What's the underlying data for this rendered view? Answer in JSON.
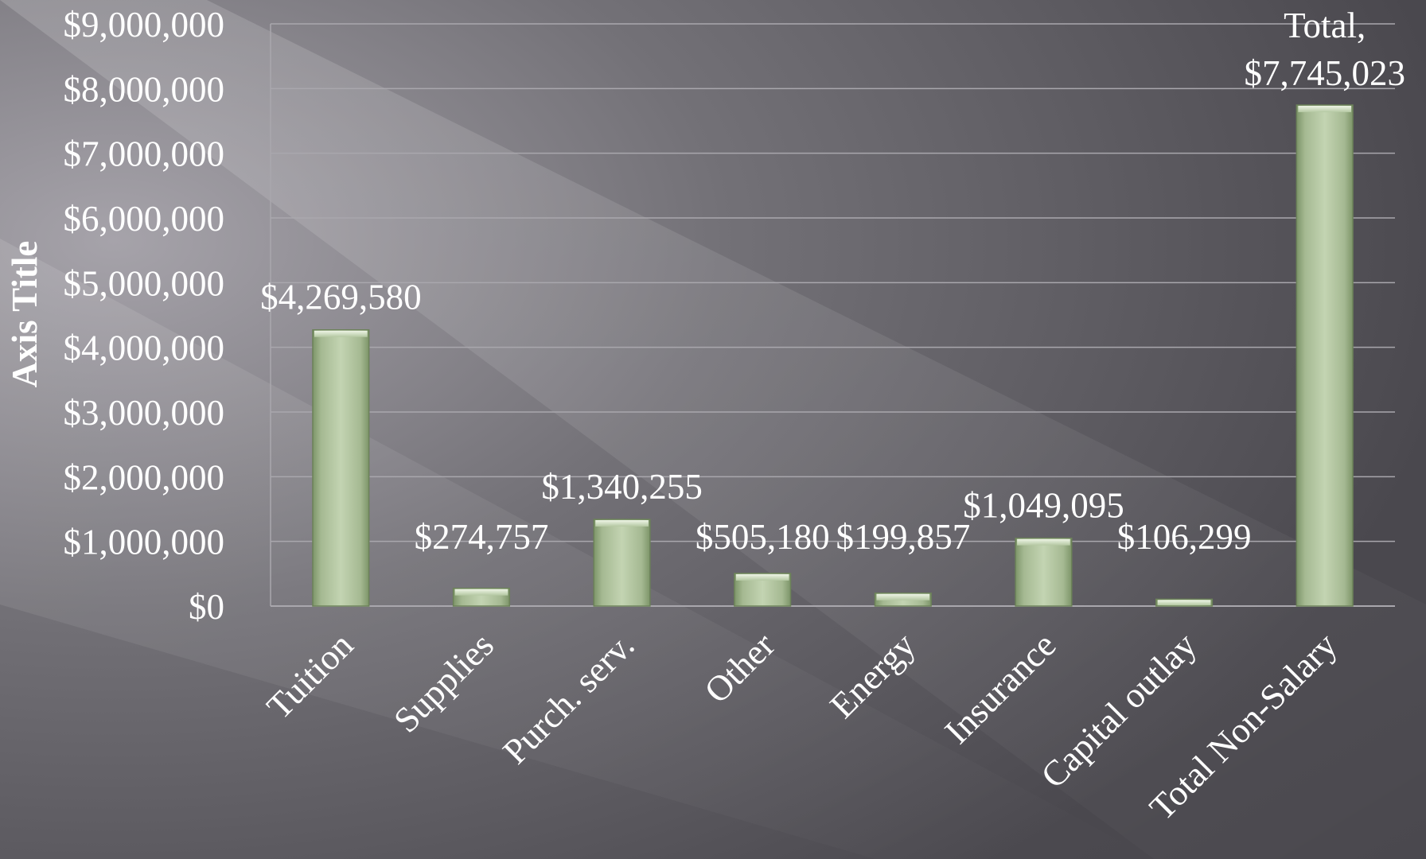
{
  "chart_data": {
    "type": "bar",
    "categories": [
      "Tuition",
      "Supplies",
      "Purch. serv.",
      "Other",
      "Energy",
      "Insurance",
      "Capital outlay",
      "Total Non-Salary"
    ],
    "values": [
      4269580,
      274757,
      1340255,
      505180,
      199857,
      1049095,
      106299,
      7745023
    ],
    "data_labels": [
      "$4,269,580",
      "$274,757",
      "$1,340,255",
      "$505,180",
      "$199,857",
      "$1,049,095",
      "$106,299",
      "Total, $7,745,023"
    ],
    "ylabel": "Axis Title",
    "xlabel": "",
    "title": "",
    "ylim": [
      0,
      9000000
    ],
    "yticks": [
      0,
      1000000,
      2000000,
      3000000,
      4000000,
      5000000,
      6000000,
      7000000,
      8000000,
      9000000
    ],
    "ytick_labels": [
      "$0",
      "$1,000,000",
      "$2,000,000",
      "$3,000,000",
      "$4,000,000",
      "$5,000,000",
      "$6,000,000",
      "$7,000,000",
      "$8,000,000",
      "$9,000,000"
    ],
    "grid": true,
    "legend": "none",
    "colors": {
      "bar": "#b4c8a2",
      "bar_dark": "#7d9569",
      "grid": "#a9a7ad",
      "text": "#ffffff",
      "background": "#58565c"
    }
  }
}
